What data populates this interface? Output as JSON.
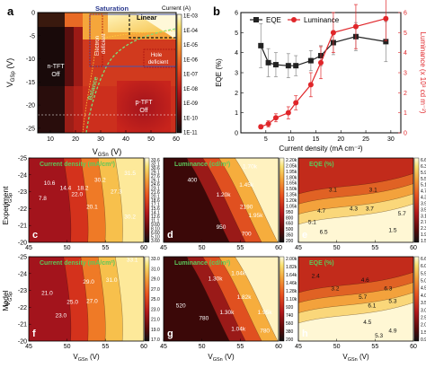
{
  "panel_a": {
    "letter": "a",
    "xlabel_main": "V",
    "xlabel_sub": "GSn",
    "xlabel_unit": " (V)",
    "ylabel_main": "V",
    "ylabel_sub": "GSp",
    "ylabel_unit": " (V)",
    "x_ticks": [
      "10",
      "20",
      "30",
      "40",
      "50",
      "60"
    ],
    "y_ticks": [
      "-25",
      "-20",
      "-15",
      "-10",
      "-5",
      "0"
    ],
    "region_labels": {
      "saturation": "Saturation",
      "linear": "Linear",
      "ntft_1": "n-TFT",
      "ntft_2": "Off",
      "ptft_1": "p-TFT",
      "ptft_2": "Off",
      "electron_1": "Electron",
      "electron_2": "deficient",
      "hole_1": "Hole",
      "hole_2": "deficient",
      "balance": "Balance"
    },
    "colorbar": {
      "title": "Current (A)",
      "ticks": [
        "1E-03",
        "1E-04",
        "1E-05",
        "1E-06",
        "1E-07",
        "1E-08",
        "1E-09",
        "1E-10",
        "1E-11"
      ]
    }
  },
  "panel_b": {
    "letter": "b",
    "legend": [
      "EQE",
      "Luminance"
    ],
    "xlabel": "Current density (mA cm⁻²)",
    "ylabel_left": "EQE (%)",
    "ylabel_right": "Luminance (x 10³ cd m⁻²)",
    "x_ticks": [
      "5",
      "10",
      "15",
      "20",
      "25",
      "30"
    ],
    "y_left_ticks": [
      "0",
      "1",
      "2",
      "3",
      "4",
      "5",
      "6"
    ],
    "y_right_ticks": [
      "0",
      "1",
      "2",
      "3",
      "4",
      "5",
      "6"
    ],
    "colors": {
      "eqe": "#222222",
      "luminance": "#e0262a"
    }
  },
  "chart_data": {
    "type": "line",
    "xlabel": "Current density (mA cm⁻²)",
    "xlim": [
      0,
      32
    ],
    "ylim_left": [
      0,
      6
    ],
    "ylim_right": [
      0,
      6
    ],
    "series": [
      {
        "name": "EQE",
        "axis": "left",
        "x": [
          4.0,
          5.5,
          7.0,
          9.5,
          11.0,
          14.0,
          16.0,
          18.5,
          23.0,
          29.0
        ],
        "values": [
          4.35,
          3.5,
          3.4,
          3.35,
          3.35,
          3.6,
          3.85,
          4.5,
          4.8,
          4.55
        ],
        "err": [
          1.1,
          0.7,
          0.6,
          0.6,
          0.5,
          0.5,
          0.5,
          0.6,
          0.7,
          1.0
        ]
      },
      {
        "name": "Luminance",
        "axis": "right",
        "x": [
          4.0,
          5.5,
          7.0,
          9.5,
          11.0,
          14.0,
          16.0,
          18.5,
          23.0,
          29.0
        ],
        "values": [
          0.3,
          0.45,
          0.75,
          1.0,
          1.5,
          2.4,
          3.5,
          5.0,
          5.3,
          5.7
        ],
        "err": [
          0.1,
          0.15,
          0.2,
          0.3,
          0.35,
          0.6,
          0.8,
          1.0,
          1.1,
          1.1
        ]
      }
    ]
  },
  "map_common": {
    "x_ticks": [
      "45",
      "50",
      "55",
      "60"
    ],
    "y_ticks": [
      "-25",
      "-24",
      "-23",
      "-22",
      "-21",
      "-20"
    ],
    "xlabel_main": "V",
    "xlabel_sub": "GSn",
    "xlabel_unit": " (V)",
    "ylabel_main": "V",
    "ylabel_sub": "GSp",
    "ylabel_unit": " (V)",
    "row_labels": [
      "Experiment",
      "Model"
    ]
  },
  "maps": [
    {
      "letter": "c",
      "title": "Current density (mA/cm²)",
      "colorbar_ticks": [
        "33.6",
        "32.1",
        "30.6",
        "29.1",
        "27.6",
        "26.1",
        "24.6",
        "23.1",
        "21.6",
        "20.1",
        "18.6",
        "17.1",
        "15.6",
        "14.1",
        "12.6",
        "11.1",
        "9.60",
        "8.10",
        "6.60",
        "5.10",
        "3.60"
      ],
      "labels": [
        "31.5",
        "30.2",
        "27.3",
        "20.1",
        "22.0",
        "30.2",
        "14.4",
        "18.2",
        "10.6",
        "7.8"
      ]
    },
    {
      "letter": "d",
      "title": "Luminance (cd/m²)",
      "colorbar_ticks": [
        "2.20k",
        "2.05k",
        "1.95k",
        "1.80k",
        "1.65k",
        "1.50k",
        "1.35k",
        "1.20k",
        "1.05k",
        "950",
        "800",
        "650",
        "500",
        "350",
        "200"
      ],
      "labels": [
        "1.70k",
        "1.45k",
        "1.20k",
        "2190",
        "1.95k",
        "950",
        "700",
        "400"
      ]
    },
    {
      "letter": "e",
      "title": "EQE (%)",
      "colorbar_ticks": [
        "6.6",
        "6.3",
        "5.9",
        "5.5",
        "5.1",
        "4.7",
        "4.3",
        "3.9",
        "3.5",
        "3.1",
        "2.7",
        "2.3",
        "1.9",
        "1.5"
      ],
      "labels": [
        "3.1",
        "4.7",
        "3.7",
        "4.3",
        "5.7",
        "5.1",
        "3.1",
        "1.5",
        "6.5"
      ]
    },
    {
      "letter": "f",
      "title": "Current density (mA/cm²)",
      "colorbar_ticks": [
        "33.0",
        "31.0",
        "29.0",
        "27.0",
        "25.0",
        "23.0",
        "21.0",
        "19.0",
        "17.0"
      ],
      "labels": [
        "33.1",
        "31.0",
        "29.0",
        "27.0",
        "25.0",
        "23.0",
        "21.0"
      ]
    },
    {
      "letter": "g",
      "title": "Luminance (cd/m²)",
      "colorbar_ticks": [
        "2.00k",
        "1.82k",
        "1.64k",
        "1.46k",
        "1.28k",
        "1.10k",
        "920",
        "740",
        "560",
        "380",
        "200"
      ],
      "labels": [
        "1.30k",
        "1.04k",
        "1.82k",
        "1.95k",
        "1.30k",
        "780",
        "520",
        "1.04k",
        "780"
      ]
    },
    {
      "letter": "h",
      "title": "EQE (%)",
      "colorbar_ticks": [
        "6.6",
        "6.0",
        "5.5",
        "5.0",
        "4.5",
        "4.0",
        "3.5",
        "3.0",
        "2.5",
        "2.0",
        "1.5",
        "0.9"
      ],
      "labels": [
        "2.4",
        "3.2",
        "4.6",
        "6.3",
        "5.7",
        "6.1",
        "5.3",
        "4.5",
        "4.9",
        "5.3"
      ]
    }
  ]
}
